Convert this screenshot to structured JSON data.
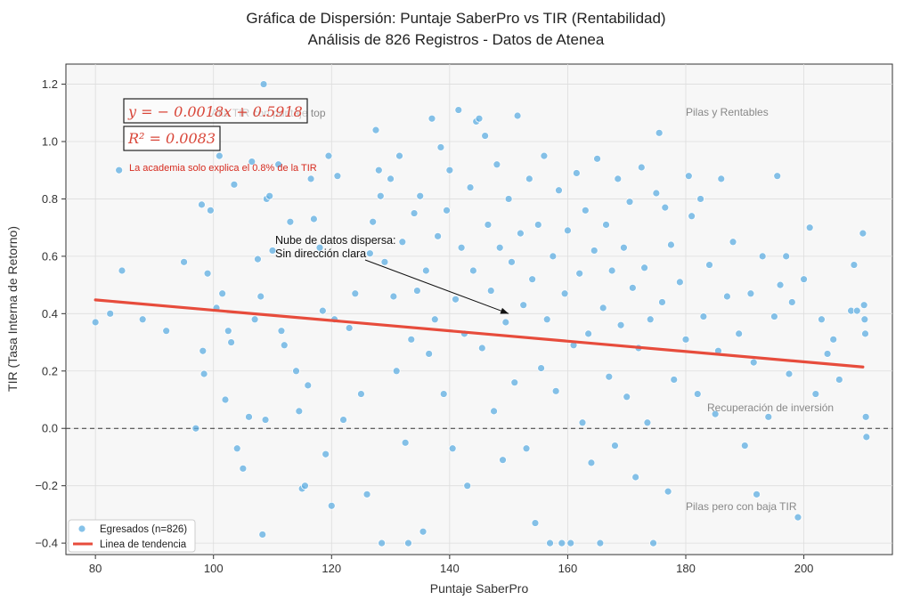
{
  "chart_data": {
    "type": "scatter",
    "title": "Gráfica de Dispersión: Puntaje SaberPro vs TIR (Rentabilidad)",
    "subtitle": "Análisis de 826 Registros - Datos de Atenea",
    "xlabel": "Puntaje SaberPro",
    "ylabel": "TIR (Tasa Interna de Retorno)",
    "xlim": [
      75,
      215
    ],
    "ylim": [
      -0.44,
      1.27
    ],
    "x_ticks": [
      80,
      100,
      120,
      140,
      160,
      180,
      200
    ],
    "y_ticks": [
      -0.4,
      -0.2,
      0.0,
      0.2,
      0.4,
      0.6,
      0.8,
      1.0,
      1.2
    ],
    "x_tick_labels": [
      "80",
      "100",
      "120",
      "140",
      "160",
      "180",
      "200"
    ],
    "y_tick_labels": [
      "−0.4",
      "−0.2",
      "0.0",
      "0.2",
      "0.4",
      "0.6",
      "0.8",
      "1.0",
      "1.2"
    ],
    "grid": true,
    "series": [
      {
        "name": "Egresados (n=826)",
        "kind": "scatter",
        "color": "#5dade2",
        "n": 826,
        "points": [
          [
            80,
            0.37
          ],
          [
            82.5,
            0.4
          ],
          [
            84,
            0.9
          ],
          [
            84.5,
            0.55
          ],
          [
            88,
            0.38
          ],
          [
            92,
            0.34
          ],
          [
            95,
            0.58
          ],
          [
            97,
            0.0
          ],
          [
            98,
            0.78
          ],
          [
            98.2,
            0.27
          ],
          [
            98.4,
            0.19
          ],
          [
            99,
            0.54
          ],
          [
            99.5,
            0.76
          ],
          [
            100.5,
            0.42
          ],
          [
            101,
            0.95
          ],
          [
            101.5,
            0.47
          ],
          [
            102,
            0.1
          ],
          [
            102.5,
            0.34
          ],
          [
            103,
            0.3
          ],
          [
            103.5,
            0.85
          ],
          [
            104,
            -0.07
          ],
          [
            105,
            -0.14
          ],
          [
            106,
            0.04
          ],
          [
            106.5,
            0.93
          ],
          [
            107,
            0.38
          ],
          [
            107.5,
            0.59
          ],
          [
            108,
            0.46
          ],
          [
            108.5,
            1.2
          ],
          [
            108.3,
            -0.37
          ],
          [
            108.8,
            0.03
          ],
          [
            109,
            0.8
          ],
          [
            109.5,
            0.81
          ],
          [
            110,
            0.62
          ],
          [
            111,
            0.92
          ],
          [
            111.5,
            0.34
          ],
          [
            112,
            0.29
          ],
          [
            113,
            0.72
          ],
          [
            114,
            0.2
          ],
          [
            114.5,
            0.06
          ],
          [
            115,
            -0.21
          ],
          [
            115.5,
            -0.2
          ],
          [
            116,
            0.15
          ],
          [
            116.5,
            0.87
          ],
          [
            117,
            0.73
          ],
          [
            118,
            0.63
          ],
          [
            118.5,
            0.41
          ],
          [
            119,
            -0.09
          ],
          [
            119.5,
            0.95
          ],
          [
            120,
            -0.27
          ],
          [
            120.5,
            0.38
          ],
          [
            121,
            0.88
          ],
          [
            122,
            0.03
          ],
          [
            123,
            0.35
          ],
          [
            124,
            0.47
          ],
          [
            125,
            0.12
          ],
          [
            126,
            -0.23
          ],
          [
            126.5,
            0.61
          ],
          [
            127,
            0.72
          ],
          [
            127.5,
            1.04
          ],
          [
            128,
            0.9
          ],
          [
            128.3,
            0.81
          ],
          [
            128.5,
            -0.4
          ],
          [
            129,
            0.58
          ],
          [
            130,
            0.87
          ],
          [
            130.5,
            0.46
          ],
          [
            131,
            0.2
          ],
          [
            131.5,
            0.95
          ],
          [
            132,
            0.65
          ],
          [
            132.5,
            -0.05
          ],
          [
            133,
            -0.4
          ],
          [
            133.5,
            0.31
          ],
          [
            134,
            0.75
          ],
          [
            134.5,
            0.48
          ],
          [
            135,
            0.81
          ],
          [
            135.5,
            -0.36
          ],
          [
            136,
            0.55
          ],
          [
            136.5,
            0.26
          ],
          [
            137,
            1.08
          ],
          [
            137.5,
            0.38
          ],
          [
            138,
            0.67
          ],
          [
            138.5,
            0.98
          ],
          [
            139,
            0.12
          ],
          [
            139.5,
            0.76
          ],
          [
            140,
            0.9
          ],
          [
            140.5,
            -0.07
          ],
          [
            141,
            0.45
          ],
          [
            141.5,
            1.11
          ],
          [
            142,
            0.63
          ],
          [
            142.5,
            0.33
          ],
          [
            143,
            -0.2
          ],
          [
            143.5,
            0.84
          ],
          [
            144,
            0.55
          ],
          [
            144.5,
            1.07
          ],
          [
            145,
            1.08
          ],
          [
            145.5,
            0.28
          ],
          [
            146,
            1.02
          ],
          [
            146.5,
            0.71
          ],
          [
            147,
            0.48
          ],
          [
            147.5,
            0.06
          ],
          [
            148,
            0.92
          ],
          [
            148.5,
            0.63
          ],
          [
            149,
            -0.11
          ],
          [
            149.5,
            0.37
          ],
          [
            150,
            0.8
          ],
          [
            150.5,
            0.58
          ],
          [
            151,
            0.16
          ],
          [
            151.5,
            1.09
          ],
          [
            152,
            0.68
          ],
          [
            152.5,
            0.43
          ],
          [
            153,
            -0.07
          ],
          [
            153.5,
            0.87
          ],
          [
            154,
            0.52
          ],
          [
            154.5,
            -0.33
          ],
          [
            155,
            0.71
          ],
          [
            155.5,
            0.21
          ],
          [
            156,
            0.95
          ],
          [
            156.5,
            0.38
          ],
          [
            157,
            -0.4
          ],
          [
            157.5,
            0.6
          ],
          [
            158,
            0.13
          ],
          [
            158.5,
            0.83
          ],
          [
            159,
            -0.4
          ],
          [
            159.5,
            0.47
          ],
          [
            160,
            0.69
          ],
          [
            160.5,
            -0.4
          ],
          [
            161,
            0.29
          ],
          [
            161.5,
            0.89
          ],
          [
            162,
            0.54
          ],
          [
            162.5,
            0.02
          ],
          [
            163,
            0.76
          ],
          [
            163.5,
            0.33
          ],
          [
            164,
            -0.12
          ],
          [
            164.5,
            0.62
          ],
          [
            165,
            0.94
          ],
          [
            165.5,
            -0.4
          ],
          [
            166,
            0.42
          ],
          [
            166.5,
            0.71
          ],
          [
            167,
            0.18
          ],
          [
            167.5,
            0.55
          ],
          [
            168,
            -0.06
          ],
          [
            168.5,
            0.87
          ],
          [
            169,
            0.36
          ],
          [
            169.5,
            0.63
          ],
          [
            170,
            0.11
          ],
          [
            170.5,
            0.79
          ],
          [
            171,
            0.49
          ],
          [
            171.5,
            -0.17
          ],
          [
            172,
            0.28
          ],
          [
            172.5,
            0.91
          ],
          [
            173,
            0.56
          ],
          [
            173.5,
            0.02
          ],
          [
            174,
            0.38
          ],
          [
            174.5,
            -0.4
          ],
          [
            175,
            0.82
          ],
          [
            175.5,
            1.03
          ],
          [
            176,
            0.44
          ],
          [
            176.5,
            0.77
          ],
          [
            177,
            -0.22
          ],
          [
            177.5,
            0.64
          ],
          [
            178,
            0.17
          ],
          [
            179,
            0.51
          ],
          [
            180,
            0.31
          ],
          [
            180.5,
            0.88
          ],
          [
            181,
            0.74
          ],
          [
            182,
            0.12
          ],
          [
            182.5,
            0.8
          ],
          [
            183,
            0.39
          ],
          [
            184,
            0.57
          ],
          [
            185,
            0.05
          ],
          [
            185.5,
            0.27
          ],
          [
            186,
            0.87
          ],
          [
            187,
            0.46
          ],
          [
            188,
            0.65
          ],
          [
            189,
            0.33
          ],
          [
            190,
            -0.06
          ],
          [
            191,
            0.47
          ],
          [
            191.5,
            0.23
          ],
          [
            192,
            -0.23
          ],
          [
            193,
            0.6
          ],
          [
            194,
            0.04
          ],
          [
            195,
            0.39
          ],
          [
            195.5,
            0.88
          ],
          [
            196,
            0.5
          ],
          [
            197,
            0.6
          ],
          [
            197.5,
            0.19
          ],
          [
            198,
            0.44
          ],
          [
            199,
            -0.31
          ],
          [
            200,
            0.52
          ],
          [
            201,
            0.7
          ],
          [
            202,
            0.12
          ],
          [
            203,
            0.38
          ],
          [
            204,
            0.26
          ],
          [
            205,
            0.31
          ],
          [
            206,
            0.17
          ],
          [
            208,
            0.41
          ],
          [
            208.5,
            0.57
          ],
          [
            209,
            0.41
          ],
          [
            210,
            0.68
          ],
          [
            210.2,
            0.43
          ],
          [
            210.3,
            0.38
          ],
          [
            210.4,
            0.33
          ],
          [
            210.5,
            0.04
          ],
          [
            210.6,
            -0.03
          ]
        ]
      },
      {
        "name": "Linea de tendencia",
        "kind": "line",
        "color": "#e74c3c",
        "slope": -0.0018,
        "intercept": 0.5918,
        "x_range": [
          80,
          210
        ],
        "y_at_x_start": 0.448,
        "y_at_x_end": 0.214
      }
    ],
    "reference_line": {
      "y": 0.0,
      "style": "dashed"
    },
    "legend": {
      "placement": "lower-left",
      "entries": [
        "Egresados (n=826)",
        "Linea de tendencia"
      ]
    },
    "annotations": {
      "equation": "y = − 0.0018x + 0.5918",
      "r_squared": "R² = 0.0083",
      "note": "La academia solo explica el 0.8% de la TIR",
      "hidden_label": "Alta TIR con puntaje top",
      "top_right": "Pilas y Rentables",
      "mid_right": "Recuperación de inversión",
      "bottom_right": "Pilas pero con baja TIR",
      "arrow_text_1": "Nube de datos dispersa:",
      "arrow_text_2": "Sin dirección clara",
      "arrow_target": [
        150,
        0.4
      ]
    },
    "colors": {
      "points": "#5dade2",
      "trend": "#e74c3c",
      "annotation_red": "#d62b1f",
      "plot_bg": "#f7f7f7"
    }
  }
}
